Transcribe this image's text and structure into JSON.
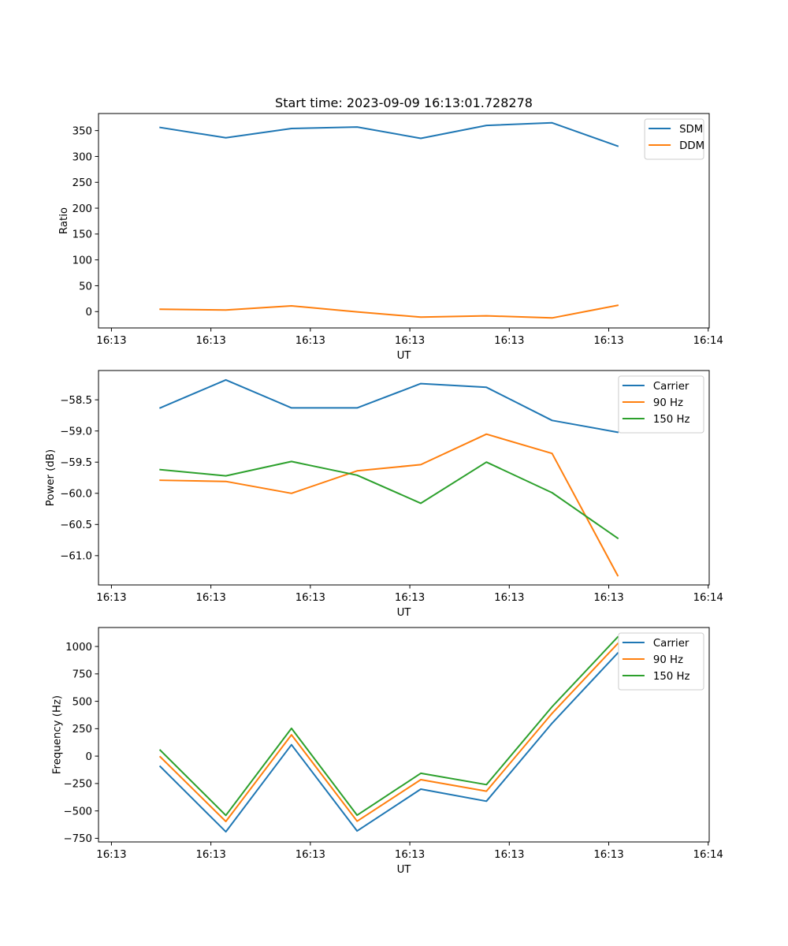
{
  "chart_data": [
    {
      "type": "line",
      "title": "Start time: 2023-09-09 16:13:01.728278",
      "xlabel": "UT",
      "ylabel": "Ratio",
      "x_unit": "seconds after 16:13:00",
      "x": [
        4.9,
        11.5,
        18.1,
        24.7,
        31.1,
        37.7,
        44.3,
        50.9
      ],
      "xlim": [
        -1.3,
        60.1
      ],
      "xticks": [
        0,
        10,
        20,
        30,
        40,
        50,
        60
      ],
      "xtick_labels": [
        "16:13",
        "16:13",
        "16:13",
        "16:13",
        "16:13",
        "16:13",
        "16:14"
      ],
      "ylim": [
        -31.6,
        383
      ],
      "yticks": [
        0,
        50,
        100,
        150,
        200,
        250,
        300,
        350
      ],
      "ytick_labels": [
        "0",
        "50",
        "100",
        "150",
        "200",
        "250",
        "300",
        "350"
      ],
      "grid": false,
      "legend": "top-right",
      "series": [
        {
          "name": "SDM",
          "color": "#1f77b4",
          "values": [
            356,
            336,
            354,
            357,
            335,
            360,
            365,
            320
          ]
        },
        {
          "name": "DDM",
          "color": "#ff7f0e",
          "values": [
            4.6,
            3.0,
            11.1,
            -0.5,
            -10.7,
            -8.2,
            -12.2,
            12.2
          ]
        }
      ]
    },
    {
      "type": "line",
      "title": "",
      "xlabel": "UT",
      "ylabel": "Power (dB)",
      "x_unit": "seconds after 16:13:00",
      "x": [
        4.9,
        11.5,
        18.1,
        24.7,
        31.1,
        37.7,
        44.3,
        50.9
      ],
      "xlim": [
        -1.3,
        60.1
      ],
      "xticks": [
        0,
        10,
        20,
        30,
        40,
        50,
        60
      ],
      "xtick_labels": [
        "16:13",
        "16:13",
        "16:13",
        "16:13",
        "16:13",
        "16:13",
        "16:14"
      ],
      "ylim": [
        -61.47,
        -58.03
      ],
      "yticks": [
        -61.0,
        -60.5,
        -60.0,
        -59.5,
        -59.0,
        -58.5
      ],
      "ytick_labels": [
        "−61.0",
        "−60.5",
        "−60.0",
        "−59.5",
        "−59.0",
        "−58.5"
      ],
      "grid": false,
      "legend": "top-right",
      "series": [
        {
          "name": "Carrier",
          "color": "#1f77b4",
          "values": [
            -58.63,
            -58.18,
            -58.63,
            -58.63,
            -58.24,
            -58.3,
            -58.83,
            -59.02
          ]
        },
        {
          "name": "90 Hz",
          "color": "#ff7f0e",
          "values": [
            -59.79,
            -59.81,
            -60.0,
            -59.64,
            -59.54,
            -59.05,
            -59.36,
            -61.32
          ]
        },
        {
          "name": "150 Hz",
          "color": "#2ca02c",
          "values": [
            -59.62,
            -59.72,
            -59.49,
            -59.71,
            -60.16,
            -59.5,
            -59.99,
            -60.72
          ]
        }
      ]
    },
    {
      "type": "line",
      "title": "",
      "xlabel": "UT",
      "ylabel": "Frequency (Hz)",
      "x_unit": "seconds after 16:13:00",
      "x": [
        4.9,
        11.5,
        18.1,
        24.7,
        31.1,
        37.7,
        44.3,
        50.9
      ],
      "xlim": [
        -1.3,
        60.1
      ],
      "xticks": [
        0,
        10,
        20,
        30,
        40,
        50,
        60
      ],
      "xtick_labels": [
        "16:13",
        "16:13",
        "16:13",
        "16:13",
        "16:13",
        "16:13",
        "16:14"
      ],
      "ylim": [
        -783,
        1173
      ],
      "yticks": [
        -750,
        -500,
        -250,
        0,
        250,
        500,
        750,
        1000
      ],
      "ytick_labels": [
        "−750",
        "−500",
        "−250",
        "0",
        "250",
        "500",
        "750",
        "1000"
      ],
      "grid": false,
      "legend": "top-right",
      "series": [
        {
          "name": "Carrier",
          "color": "#1f77b4",
          "values": [
            -94,
            -690,
            104,
            -683,
            -301,
            -411,
            300,
            940
          ]
        },
        {
          "name": "90 Hz",
          "color": "#ff7f0e",
          "values": [
            -6,
            -596,
            194,
            -594,
            -215,
            -320,
            390,
            1026
          ]
        },
        {
          "name": "150 Hz",
          "color": "#2ca02c",
          "values": [
            54,
            -541,
            253,
            -539,
            -157,
            -260,
            450,
            1086
          ]
        }
      ]
    }
  ]
}
